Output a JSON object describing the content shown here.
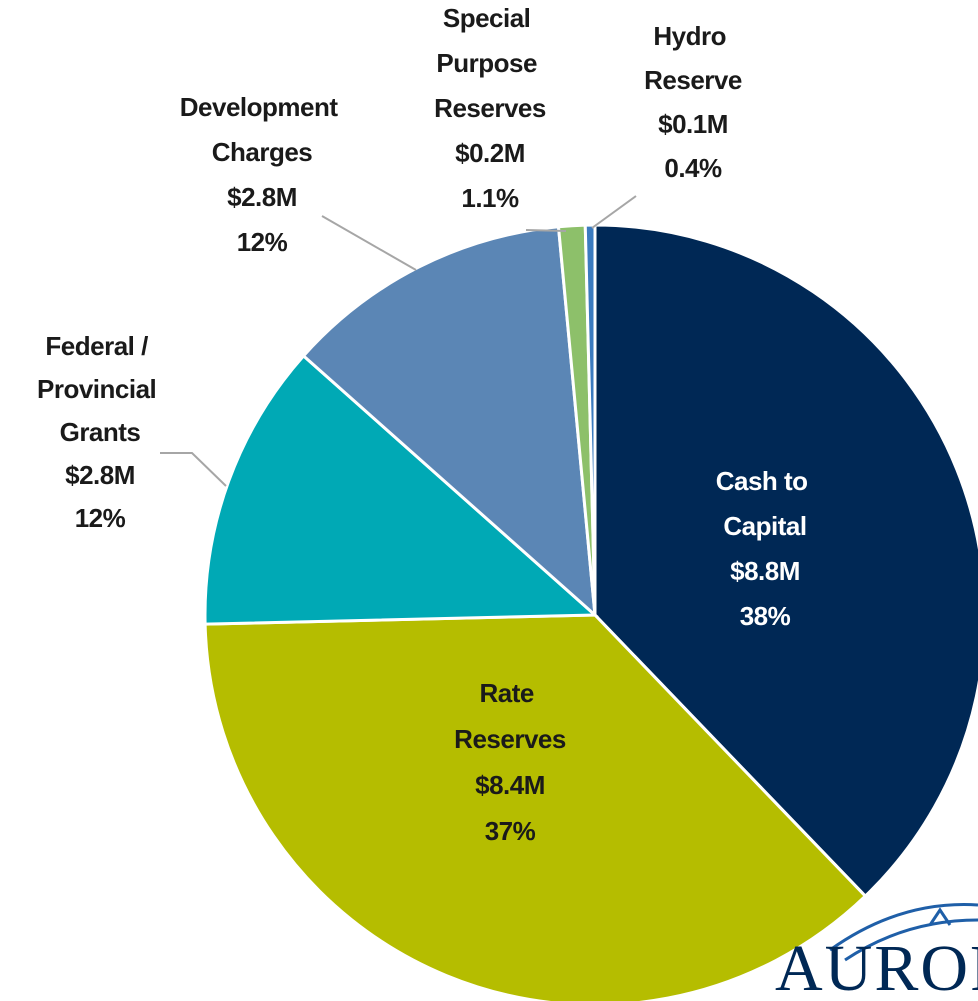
{
  "chart_data": {
    "type": "pie",
    "categories": [
      "Cash to Capital",
      "Rate Reserves",
      "Federal / Provincial Grants",
      "Development Charges",
      "Special Purpose Reserves",
      "Hydro Reserve"
    ],
    "amounts": [
      "$8.8M",
      "$8.4M",
      "$2.8M",
      "$2.8M",
      "$0.2M",
      "$0.1M"
    ],
    "values": [
      38,
      37,
      12,
      12,
      1.1,
      0.4
    ],
    "value_labels": [
      "38%",
      "37%",
      "12%",
      "12%",
      "1.1%",
      "0.4%"
    ],
    "colors": [
      "#002855",
      "#b5bd00",
      "#00a9b5",
      "#5b86b5",
      "#8dc06a",
      "#3b7bbf"
    ],
    "logo": "AURORA"
  }
}
